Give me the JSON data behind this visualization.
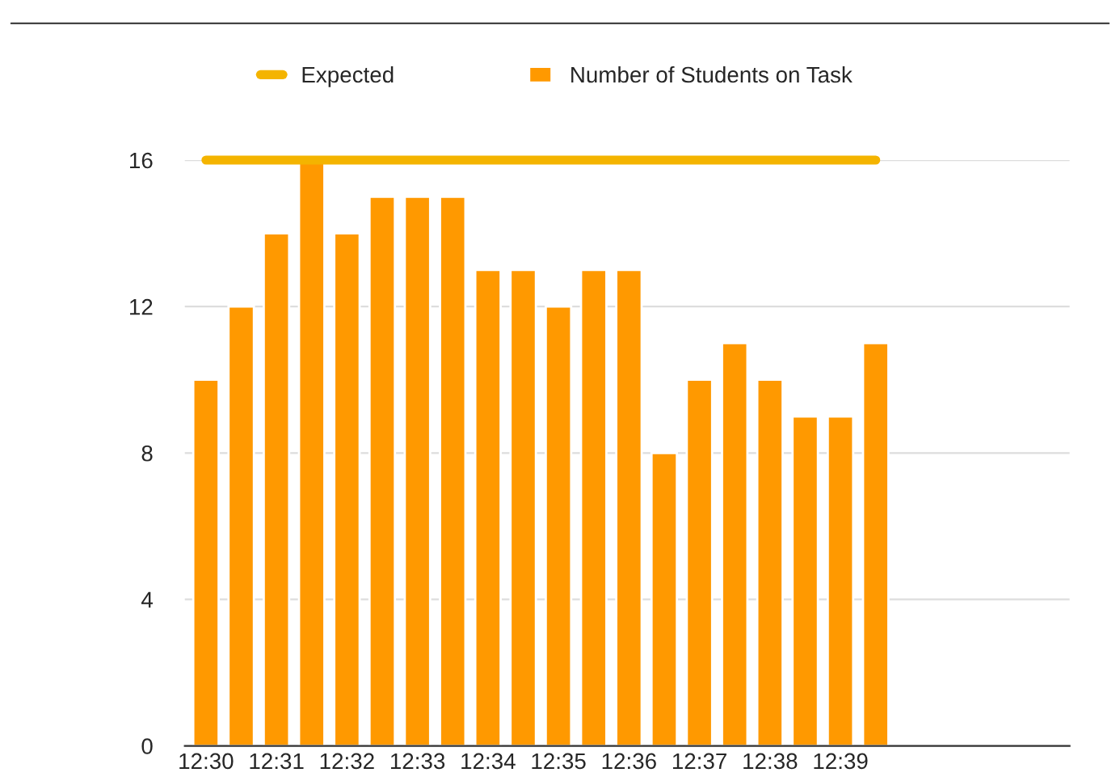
{
  "chart_data": {
    "type": "bar",
    "categories": [
      "12:30",
      null,
      "12:31",
      null,
      "12:32",
      null,
      "12:33",
      null,
      "12:34",
      null,
      "12:35",
      null,
      "12:36",
      null,
      "12:37",
      null,
      "12:38",
      null,
      "12:39",
      null
    ],
    "series": [
      {
        "name": "Expected",
        "type": "line",
        "color": "#f4b400",
        "values": [
          16,
          16,
          16,
          16,
          16,
          16,
          16,
          16,
          16,
          16,
          16,
          16,
          16,
          16,
          16,
          16,
          16,
          16,
          16,
          16
        ]
      },
      {
        "name": "Number of Students on Task",
        "color": "#ff9900",
        "values": [
          10,
          12,
          14,
          16,
          14,
          15,
          15,
          15,
          13,
          13,
          12,
          13,
          13,
          8,
          10,
          11,
          10,
          9,
          9,
          11
        ]
      }
    ],
    "ylim": [
      0,
      16
    ],
    "yticks": [
      0,
      4,
      8,
      12,
      16
    ],
    "grid": "y",
    "legend": "top"
  }
}
